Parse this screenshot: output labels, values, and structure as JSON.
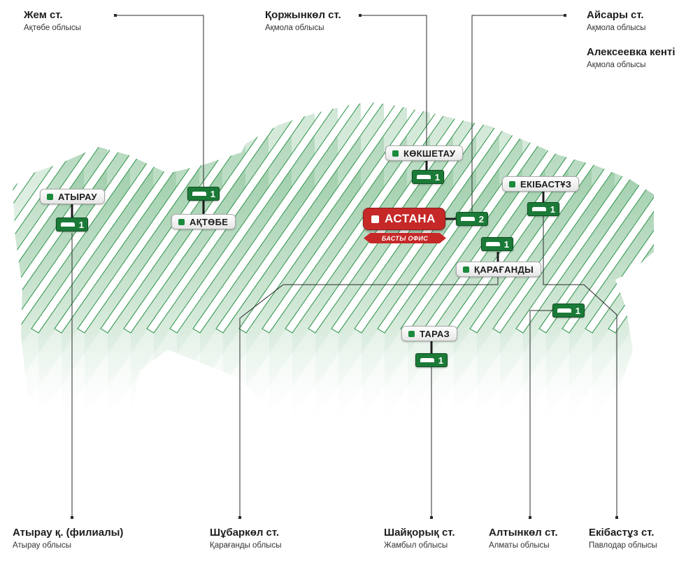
{
  "annotations": [
    {
      "name": "Жем ст.",
      "region": "Ақтөбе облысы"
    },
    {
      "name": "Қоржынкөл ст.",
      "region": "Ақмола облысы"
    },
    {
      "name": "Айсары ст.",
      "region": "Ақмола облысы"
    },
    {
      "name": "Алексеевка кенті",
      "region": "Ақмола облысы"
    },
    {
      "name": "Атырау қ. (филиалы)",
      "region": "Атырау облысы"
    },
    {
      "name": "Шұбаркөл ст.",
      "region": "Қарағанды облысы"
    },
    {
      "name": "Шайқорық ст.",
      "region": "Жамбыл облысы"
    },
    {
      "name": "Алтынкөл ст.",
      "region": "Алматы облысы"
    },
    {
      "name": "Екібастұз ст.",
      "region": "Павлодар облысы"
    }
  ],
  "cities": [
    {
      "name": "АТЫРАУ",
      "count": "1"
    },
    {
      "name": "АҚТӨБЕ",
      "count": "1"
    },
    {
      "name": "КӨКШЕТАУ",
      "count": "1"
    },
    {
      "name": "ЕКІБАСТҰЗ",
      "count": "1"
    },
    {
      "name": "ҚАРАҒАНДЫ",
      "count": "1"
    },
    {
      "name": "ТАРАЗ",
      "count": "1"
    }
  ],
  "extra_badge": {
    "count": "1"
  },
  "hq": {
    "name": "АСТАНА",
    "subtitle": "БАСТЫ ОФИС",
    "count": "2"
  },
  "colors": {
    "green": "#1b7a37",
    "red": "#c62828",
    "map_line": "#3a9a55"
  }
}
